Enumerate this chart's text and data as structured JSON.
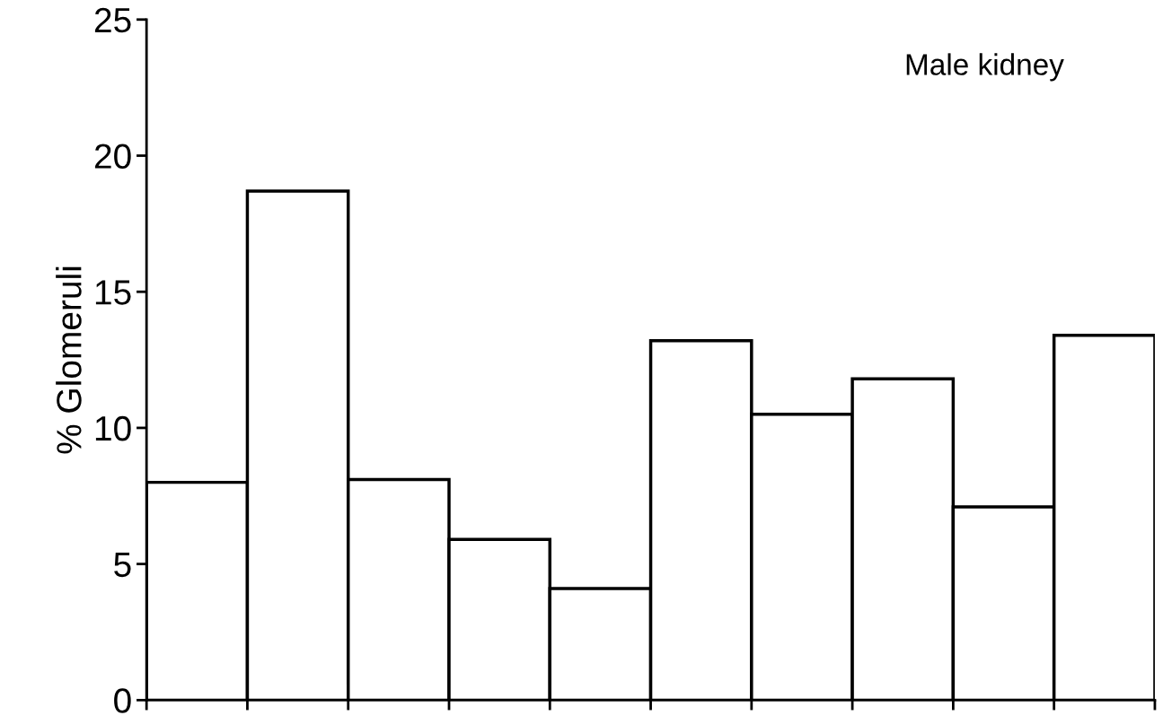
{
  "chart_data": {
    "type": "bar",
    "ylabel": "% Glomeruli",
    "annotations": [
      "Male kidney"
    ],
    "categories": [
      null,
      null,
      null,
      null,
      null,
      null,
      null,
      null,
      null,
      null
    ],
    "series": [
      {
        "color": "#000000",
        "values": [
          8.0,
          18.7,
          8.1,
          5.9,
          4.1,
          13.2,
          10.5,
          11.8,
          7.1,
          13.4
        ]
      }
    ],
    "ylim": [
      0,
      25
    ],
    "yticks": [
      0,
      5,
      10,
      15,
      20,
      25
    ],
    "tick_labels": "y",
    "grid": false,
    "legend": false
  }
}
